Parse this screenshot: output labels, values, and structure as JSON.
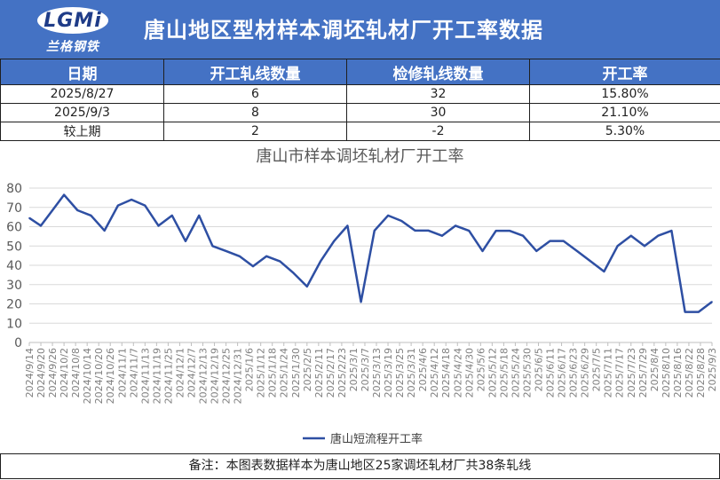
{
  "header": {
    "logo_mark": "LGMi",
    "logo_text": "兰格钢铁",
    "title": "唐山地区型材样本调坯轧材厂开工率数据"
  },
  "summary_table": {
    "columns": [
      "日期",
      "开工轧线数量",
      "检修轧线数量",
      "开工率"
    ],
    "rows": [
      [
        "2025/8/27",
        "6",
        "32",
        "15.80%"
      ],
      [
        "2025/9/3",
        "8",
        "30",
        "21.10%"
      ],
      [
        "较上期",
        "2",
        "-2",
        "5.30%"
      ]
    ]
  },
  "chart_data": {
    "type": "line",
    "title": "唐山市样本调坯轧材厂开工率",
    "xlabel": "",
    "ylabel": "",
    "ylim": [
      0,
      80
    ],
    "yticks": [
      0,
      10,
      20,
      30,
      40,
      50,
      60,
      70,
      80
    ],
    "grid": "horizontal",
    "legend_position": "bottom",
    "line_color": "#2e4fa3",
    "x": [
      "2024/9/14",
      "2024/9/20",
      "2024/9/26",
      "2024/10/2",
      "2024/10/8",
      "2024/10/14",
      "2024/10/20",
      "2024/10/26",
      "2024/11/1",
      "2024/11/7",
      "2024/11/13",
      "2024/11/19",
      "2024/11/25",
      "2024/12/1",
      "2024/12/7",
      "2024/12/13",
      "2024/12/19",
      "2024/12/25",
      "2024/12/31",
      "2025/1/6",
      "2025/1/12",
      "2025/1/18",
      "2025/1/24",
      "2025/1/30",
      "2025/2/5",
      "2025/2/11",
      "2025/2/17",
      "2025/2/23",
      "2025/3/1",
      "2025/3/7",
      "2025/3/13",
      "2025/3/19",
      "2025/3/25",
      "2025/3/31",
      "2025/4/6",
      "2025/4/12",
      "2025/4/18",
      "2025/4/24",
      "2025/4/30",
      "2025/5/6",
      "2025/5/12",
      "2025/5/18",
      "2025/5/24",
      "2025/5/30",
      "2025/6/5",
      "2025/6/11",
      "2025/6/17",
      "2025/6/23",
      "2025/6/29",
      "2025/7/5",
      "2025/7/11",
      "2025/7/17",
      "2025/7/23",
      "2025/7/29",
      "2025/8/4",
      "2025/8/10",
      "2025/8/16",
      "2025/8/22",
      "2025/8/28",
      "2025/9/3"
    ],
    "series": [
      {
        "name": "唐山短流程开工率",
        "points": [
          [
            "2024/9/14",
            64.5
          ],
          [
            "2024/9/20",
            60.5
          ],
          [
            "2024/9/26",
            68.5
          ],
          [
            "2024/10/2",
            76.5
          ],
          [
            "2024/10/9",
            68.5
          ],
          [
            "2024/10/16",
            65.8
          ],
          [
            "2024/10/23",
            58
          ],
          [
            "2024/10/30",
            71
          ],
          [
            "2024/11/6",
            74
          ],
          [
            "2024/11/13",
            71
          ],
          [
            "2024/11/20",
            60.5
          ],
          [
            "2024/11/27",
            65.8
          ],
          [
            "2024/12/4",
            52.5
          ],
          [
            "2024/12/11",
            65.8
          ],
          [
            "2024/12/18",
            50
          ],
          [
            "2024/12/25",
            47.4
          ],
          [
            "2025/1/1",
            44.7
          ],
          [
            "2025/1/8",
            39.5
          ],
          [
            "2025/1/15",
            44.7
          ],
          [
            "2025/1/22",
            42
          ],
          [
            "2025/1/29",
            36
          ],
          [
            "2025/2/5",
            29
          ],
          [
            "2025/2/12",
            42
          ],
          [
            "2025/2/19",
            52.5
          ],
          [
            "2025/2/26",
            60.5
          ],
          [
            "2025/3/5",
            21
          ],
          [
            "2025/3/12",
            58
          ],
          [
            "2025/3/19",
            65.8
          ],
          [
            "2025/3/26",
            63
          ],
          [
            "2025/4/2",
            58
          ],
          [
            "2025/4/9",
            58
          ],
          [
            "2025/4/16",
            55.3
          ],
          [
            "2025/4/23",
            60.5
          ],
          [
            "2025/4/30",
            57.9
          ],
          [
            "2025/5/7",
            47.4
          ],
          [
            "2025/5/14",
            57.9
          ],
          [
            "2025/5/21",
            57.9
          ],
          [
            "2025/5/28",
            55.3
          ],
          [
            "2025/6/4",
            47.4
          ],
          [
            "2025/6/11",
            52.6
          ],
          [
            "2025/6/18",
            52.6
          ],
          [
            "2025/6/25",
            47.4
          ],
          [
            "2025/7/2",
            42.1
          ],
          [
            "2025/7/9",
            36.8
          ],
          [
            "2025/7/16",
            50
          ],
          [
            "2025/7/23",
            55.3
          ],
          [
            "2025/7/30",
            50
          ],
          [
            "2025/8/6",
            55.3
          ],
          [
            "2025/8/13",
            57.9
          ],
          [
            "2025/8/20",
            15.8
          ],
          [
            "2025/8/27",
            15.8
          ],
          [
            "2025/9/3",
            21.1
          ]
        ]
      }
    ]
  },
  "footer": {
    "note": "备注：本图表数据样本为唐山地区25家调坯轧材厂共38条轧线"
  }
}
